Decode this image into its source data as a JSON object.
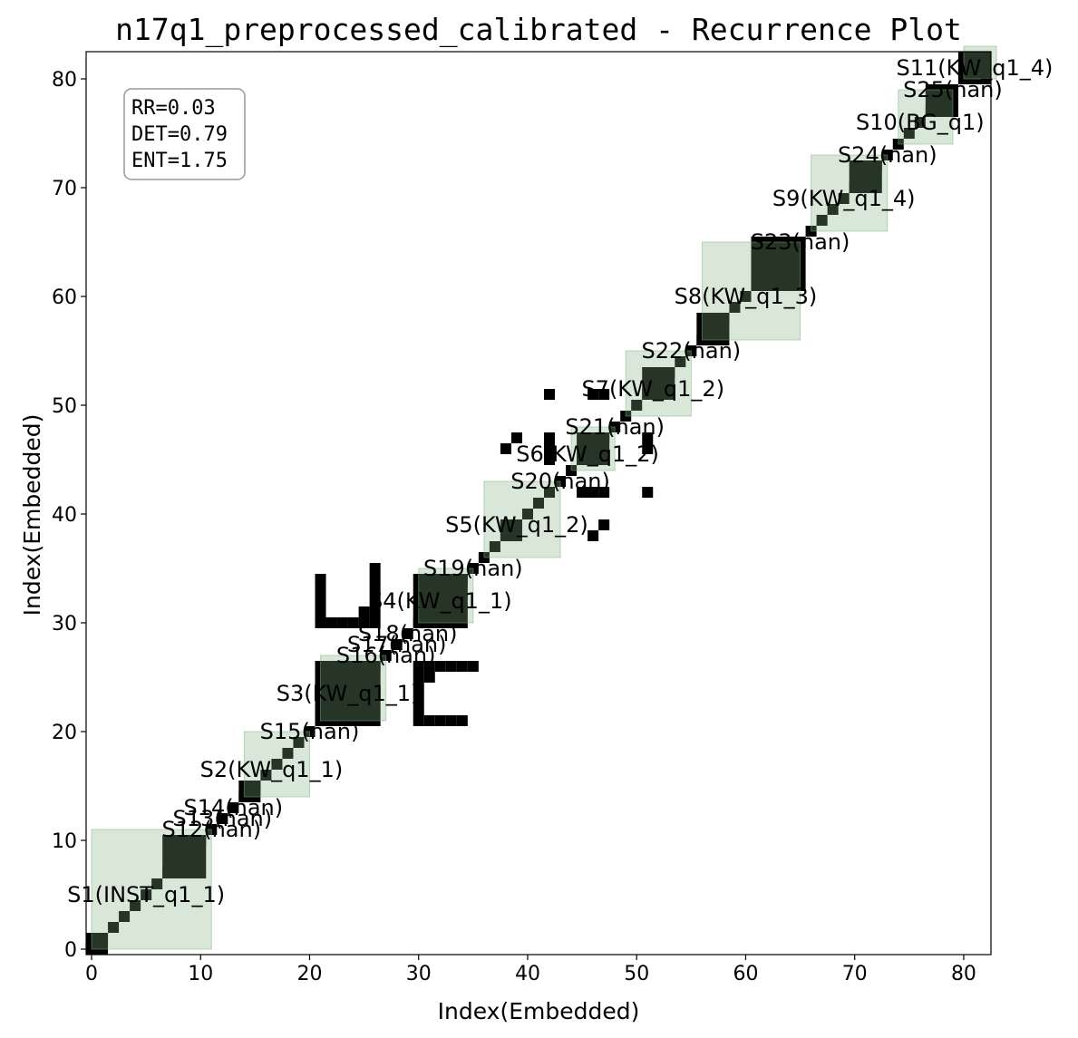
{
  "chart_data": {
    "type": "heatmap",
    "title": "n17q1_preprocessed_calibrated - Recurrence Plot",
    "xlabel": "Index(Embedded)",
    "ylabel": "Index(Embedded)",
    "xlim": [
      -0.5,
      82.5
    ],
    "ylim": [
      -0.5,
      82.5
    ],
    "xticks": [
      0,
      10,
      20,
      30,
      40,
      50,
      60,
      70,
      80
    ],
    "yticks": [
      0,
      10,
      20,
      30,
      40,
      50,
      60,
      70,
      80
    ],
    "grid": false,
    "stats_box": {
      "lines": [
        "RR=0.03",
        "DET=0.79",
        "ENT=1.75"
      ],
      "placement": "top-left"
    },
    "colors": {
      "recurrence": "#000000",
      "segment_fill": "#7fb07f",
      "box_border": "#999999"
    },
    "segments": [
      {
        "label": "S1(INST_q1_1)",
        "start": 0,
        "end": 10
      },
      {
        "label": "S12(nan)",
        "start": 11,
        "end": 11
      },
      {
        "label": "S13(nan)",
        "start": 12,
        "end": 12
      },
      {
        "label": "S14(nan)",
        "start": 13,
        "end": 13
      },
      {
        "label": "S2(KW_q1_1)",
        "start": 14,
        "end": 19
      },
      {
        "label": "S15(nan)",
        "start": 20,
        "end": 20
      },
      {
        "label": "S3(KW_q1_1)",
        "start": 21,
        "end": 26
      },
      {
        "label": "S16(nan)",
        "start": 27,
        "end": 27
      },
      {
        "label": "S17(nan)",
        "start": 28,
        "end": 28
      },
      {
        "label": "S18(nan)",
        "start": 29,
        "end": 29
      },
      {
        "label": "S4(KW_q1_1)",
        "start": 30,
        "end": 34
      },
      {
        "label": "S19(nan)",
        "start": 35,
        "end": 35
      },
      {
        "label": "S5(KW_q1_2)",
        "start": 36,
        "end": 42
      },
      {
        "label": "S20(nan)",
        "start": 43,
        "end": 43
      },
      {
        "label": "S6(KW_q1_2)",
        "start": 44,
        "end": 47
      },
      {
        "label": "S21(nan)",
        "start": 48,
        "end": 48
      },
      {
        "label": "S7(KW_q1_2)",
        "start": 49,
        "end": 54
      },
      {
        "label": "S22(nan)",
        "start": 55,
        "end": 55
      },
      {
        "label": "S8(KW_q1_3)",
        "start": 56,
        "end": 64
      },
      {
        "label": "S23(nan)",
        "start": 65,
        "end": 65
      },
      {
        "label": "S9(KW_q1_4)",
        "start": 66,
        "end": 72
      },
      {
        "label": "S24(nan)",
        "start": 73,
        "end": 73
      },
      {
        "label": "S10(BG_q1)",
        "start": 74,
        "end": 78
      },
      {
        "label": "S25(nan)",
        "start": 79,
        "end": 79
      },
      {
        "label": "S11(KW_q1_4)",
        "start": 80,
        "end": 82
      }
    ],
    "diagonal": {
      "start": 0,
      "end": 82
    },
    "recurrence_blocks": [
      {
        "x": [
          0,
          1
        ],
        "y": [
          0,
          1
        ]
      },
      {
        "x": [
          7,
          10
        ],
        "y": [
          7,
          10
        ]
      },
      {
        "x": [
          14,
          15
        ],
        "y": [
          14,
          15
        ]
      },
      {
        "x": [
          21,
          26
        ],
        "y": [
          21,
          26
        ]
      },
      {
        "x": [
          30,
          34
        ],
        "y": [
          30,
          34
        ]
      },
      {
        "x": [
          38,
          39
        ],
        "y": [
          38,
          39
        ]
      },
      {
        "x": [
          45,
          47
        ],
        "y": [
          45,
          47
        ]
      },
      {
        "x": [
          51,
          53
        ],
        "y": [
          51,
          53
        ]
      },
      {
        "x": [
          56,
          58
        ],
        "y": [
          56,
          58
        ]
      },
      {
        "x": [
          61,
          65
        ],
        "y": [
          61,
          65
        ]
      },
      {
        "x": [
          70,
          72
        ],
        "y": [
          70,
          72
        ]
      },
      {
        "x": [
          77,
          79
        ],
        "y": [
          77,
          79
        ]
      },
      {
        "x": [
          80,
          82
        ],
        "y": [
          80,
          82
        ]
      }
    ],
    "off_diagonal_points": [
      [
        21,
        30
      ],
      [
        21,
        31
      ],
      [
        21,
        32
      ],
      [
        21,
        33
      ],
      [
        21,
        34
      ],
      [
        22,
        30
      ],
      [
        23,
        30
      ],
      [
        24,
        30
      ],
      [
        25,
        30
      ],
      [
        25,
        31
      ],
      [
        26,
        30
      ],
      [
        26,
        31
      ],
      [
        26,
        32
      ],
      [
        26,
        33
      ],
      [
        26,
        34
      ],
      [
        26,
        35
      ],
      [
        30,
        21
      ],
      [
        31,
        21
      ],
      [
        32,
        21
      ],
      [
        33,
        21
      ],
      [
        34,
        21
      ],
      [
        30,
        22
      ],
      [
        30,
        23
      ],
      [
        30,
        24
      ],
      [
        30,
        25
      ],
      [
        31,
        25
      ],
      [
        30,
        26
      ],
      [
        31,
        26
      ],
      [
        32,
        26
      ],
      [
        33,
        26
      ],
      [
        34,
        26
      ],
      [
        35,
        26
      ],
      [
        38,
        46
      ],
      [
        39,
        47
      ],
      [
        46,
        38
      ],
      [
        47,
        39
      ],
      [
        42,
        51
      ],
      [
        42,
        46
      ],
      [
        42,
        45
      ],
      [
        46,
        42
      ],
      [
        45,
        42
      ],
      [
        46,
        51
      ],
      [
        47,
        51
      ],
      [
        51,
        46
      ],
      [
        51,
        47
      ],
      [
        46,
        42
      ],
      [
        47,
        42
      ],
      [
        42,
        47
      ],
      [
        51,
        42
      ]
    ]
  }
}
